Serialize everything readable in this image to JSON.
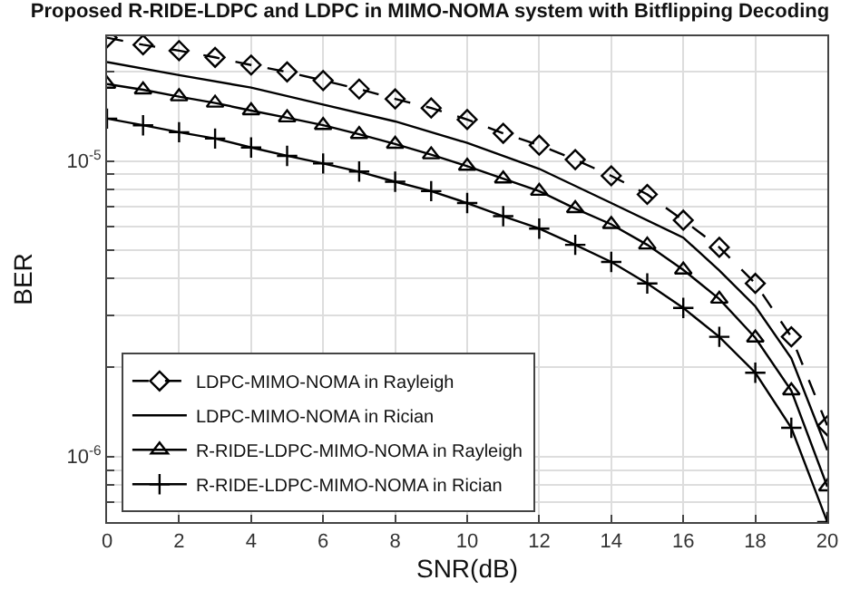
{
  "chart_data": {
    "type": "line",
    "title": "Proposed R-RIDE-LDPC and LDPC in MIMO-NOMA system with Bitflipping Decoding",
    "xlabel": "SNR(dB)",
    "ylabel": "BER",
    "x": [
      0,
      1,
      2,
      3,
      4,
      5,
      6,
      7,
      8,
      9,
      10,
      11,
      12,
      13,
      14,
      15,
      16,
      17,
      18,
      19,
      20
    ],
    "series": [
      {
        "name": "LDPC-MIMO-NOMA in Rayleigh",
        "color": "#000000",
        "marker": "diamond",
        "line_style": "dashed",
        "values": [
          2.61e-05,
          2.47e-05,
          2.36e-05,
          2.24e-05,
          2.11e-05,
          2e-05,
          1.87e-05,
          1.75e-05,
          1.62e-05,
          1.51e-05,
          1.38e-05,
          1.24e-05,
          1.13e-05,
          1.01e-05,
          8.9e-06,
          7.7e-06,
          6.3e-06,
          5.1e-06,
          3.85e-06,
          2.54e-06,
          1.27e-06
        ]
      },
      {
        "name": "LDPC-MIMO-NOMA in Rician",
        "color": "#000000",
        "marker": "none",
        "line_style": "solid",
        "x": [
          0,
          2,
          4,
          6,
          8,
          10,
          12,
          14,
          16,
          17,
          18,
          19,
          20
        ],
        "values": [
          2.16e-05,
          1.95e-05,
          1.77e-05,
          1.55e-05,
          1.36e-05,
          1.15e-05,
          9.4e-06,
          7.2e-06,
          5.5e-06,
          4.26e-06,
          3.22e-06,
          2.15e-06,
          1.05e-06
        ]
      },
      {
        "name": "R-RIDE-LDPC-MIMO-NOMA in Rayleigh",
        "color": "#000000",
        "marker": "triangle",
        "line_style": "solid",
        "values": [
          1.82e-05,
          1.74e-05,
          1.65e-05,
          1.57e-05,
          1.48e-05,
          1.4e-05,
          1.32e-05,
          1.23e-05,
          1.14e-05,
          1.05e-05,
          9.6e-06,
          8.7e-06,
          7.9e-06,
          6.9e-06,
          6.1e-06,
          5.2e-06,
          4.28e-06,
          3.41e-06,
          2.52e-06,
          1.67e-06,
          7.9e-07
        ]
      },
      {
        "name": "R-RIDE-LDPC-MIMO-NOMA in Rician",
        "color": "#000000",
        "marker": "cross",
        "line_style": "solid",
        "values": [
          1.39e-05,
          1.32e-05,
          1.25e-05,
          1.19e-05,
          1.11e-05,
          1.04e-05,
          9.8e-06,
          9.2e-06,
          8.5e-06,
          7.9e-06,
          7.2e-06,
          6.5e-06,
          5.9e-06,
          5.2e-06,
          4.55e-06,
          3.85e-06,
          3.18e-06,
          2.54e-06,
          1.92e-06,
          1.25e-06,
          6e-07
        ]
      }
    ],
    "log": "y",
    "xlim": [
      0,
      20
    ],
    "xticks": [
      0,
      2,
      4,
      6,
      8,
      10,
      12,
      14,
      16,
      18,
      20
    ],
    "ylim": [
      6e-07,
      2.64e-05
    ],
    "yticks": [
      {
        "value": 7e-07,
        "label": null
      },
      {
        "value": 8e-07,
        "label": null
      },
      {
        "value": 9e-07,
        "label": null
      },
      {
        "value": 1e-06,
        "label": "10$^{-6}$"
      },
      {
        "value": 2e-06,
        "label": null
      },
      {
        "value": 3e-06,
        "label": null
      },
      {
        "value": 4e-06,
        "label": null
      },
      {
        "value": 5e-06,
        "label": null
      },
      {
        "value": 6e-06,
        "label": null
      },
      {
        "value": 7e-06,
        "label": null
      },
      {
        "value": 8e-06,
        "label": null
      },
      {
        "value": 9e-06,
        "label": null
      },
      {
        "value": 1e-05,
        "label": "10$^{-5}$"
      },
      {
        "value": 2e-05,
        "label": null
      }
    ],
    "grid": true,
    "legend": "bottom left"
  }
}
